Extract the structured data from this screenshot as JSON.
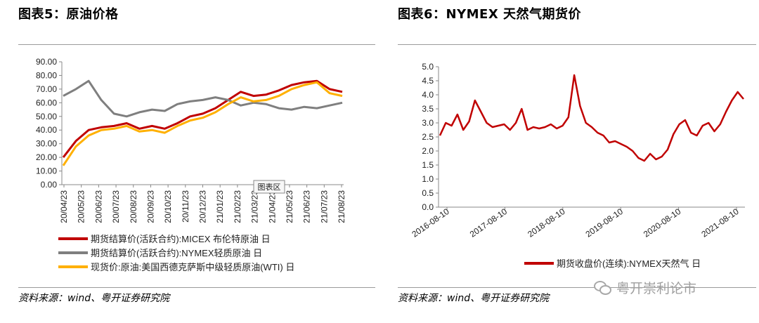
{
  "left_panel": {
    "title": "图表5：原油价格",
    "source": "资料来源：wind、粤开证券研究院",
    "hover_label": "图表区"
  },
  "right_panel": {
    "title": "图表6：NYMEX 天然气期货价",
    "source": "资料来源：wind、粤开证券研究院"
  },
  "watermark": {
    "text": "粤开崇利论市",
    "icon": "wechat-icon"
  },
  "colors": {
    "red": "#c00000",
    "gray": "#7f7f7f",
    "orange": "#ffb000",
    "rule": "#9a9a9a"
  },
  "chart_data": [
    {
      "type": "line",
      "ylim": [
        0,
        90
      ],
      "yticks": [
        "0.00",
        "10.00",
        "20.00",
        "30.00",
        "40.00",
        "50.00",
        "60.00",
        "70.00",
        "80.00",
        "90.00"
      ],
      "x_ticks": [
        "20/04/23",
        "20/05/23",
        "20/06/23",
        "20/07/23",
        "20/08/23",
        "20/09/23",
        "20/10/23",
        "20/11/23",
        "20/12/23",
        "21/01/23",
        "21/02/23",
        "21/03/23",
        "21/04/23",
        "21/05/23",
        "21/06/23",
        "21/07/23",
        "21/08/23"
      ],
      "legend_position": "bottom",
      "series": [
        {
          "name": "期货结算价(活跃合约):MICEX 布伦特原油 日",
          "color": "#c00000",
          "values": [
            20,
            32,
            40,
            42,
            43,
            45,
            41,
            43,
            41,
            45,
            50,
            52,
            56,
            62,
            68,
            65,
            66,
            69,
            73,
            75,
            76,
            70,
            68
          ]
        },
        {
          "name": "期货结算价(活跃合约):NYMEX轻质原油 日",
          "color": "#7f7f7f",
          "values": [
            65,
            70,
            76,
            62,
            52,
            50,
            53,
            55,
            54,
            59,
            61,
            62,
            64,
            62,
            58,
            60,
            59,
            56,
            55,
            57,
            56,
            58,
            60
          ]
        },
        {
          "name": "现货价:原油:美国西德克萨斯中级轻质原油(WTI) 日",
          "color": "#ffb000",
          "values": [
            14,
            28,
            36,
            40,
            41,
            43,
            39,
            40,
            38,
            43,
            47,
            49,
            53,
            59,
            64,
            61,
            62,
            65,
            70,
            73,
            75,
            67,
            65
          ]
        }
      ]
    },
    {
      "type": "line",
      "ylim": [
        0.0,
        5.0
      ],
      "yticks": [
        "0.0",
        "0.5",
        "1.0",
        "1.5",
        "2.0",
        "2.5",
        "3.0",
        "3.5",
        "4.0",
        "4.5",
        "5.0"
      ],
      "x_ticks": [
        "2016-08-10",
        "2017-08-10",
        "2018-08-10",
        "2019-08-10",
        "2020-08-10",
        "2021-08-10"
      ],
      "legend_position": "bottom",
      "series": [
        {
          "name": "期货收盘价(连续):NYMEX天然气 日",
          "color": "#c00000",
          "values": [
            2.55,
            3.0,
            2.9,
            3.3,
            2.75,
            3.05,
            3.8,
            3.4,
            3.0,
            2.85,
            2.9,
            2.95,
            2.75,
            3.0,
            3.5,
            2.75,
            2.85,
            2.8,
            2.85,
            2.95,
            2.8,
            2.9,
            3.2,
            4.7,
            3.6,
            3.0,
            2.85,
            2.65,
            2.55,
            2.3,
            2.35,
            2.25,
            2.15,
            2.0,
            1.75,
            1.65,
            1.9,
            1.7,
            1.8,
            2.05,
            2.6,
            2.95,
            3.1,
            2.65,
            2.55,
            2.9,
            3.0,
            2.7,
            2.95,
            3.4,
            3.8,
            4.1,
            3.85
          ]
        }
      ]
    }
  ]
}
